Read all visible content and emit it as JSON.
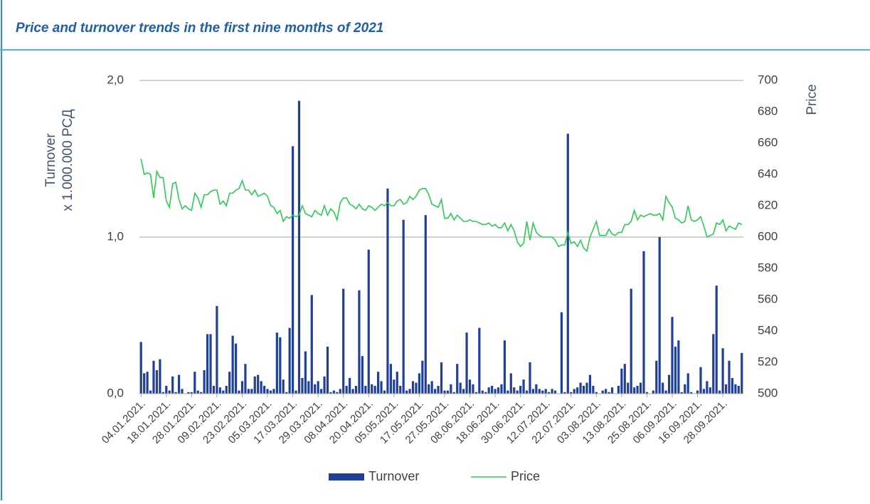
{
  "chart_data": {
    "type": "bar_line",
    "title": "Price and turnover trends in the first nine months of 2021",
    "y_label": [
      "Turnover",
      "x 1.000.000 РСД"
    ],
    "y2_label": "Price",
    "categories": [
      "04.01.2021.",
      null,
      null,
      null,
      null,
      null,
      null,
      null,
      "18.01.2021.",
      null,
      null,
      null,
      null,
      null,
      null,
      null,
      "28.01.2021.",
      null,
      null,
      null,
      null,
      null,
      null,
      null,
      "09.02.2021.",
      null,
      null,
      null,
      null,
      null,
      null,
      null,
      "23.02.2021.",
      null,
      null,
      null,
      null,
      null,
      null,
      null,
      "05.03.2021.",
      null,
      null,
      null,
      null,
      null,
      null,
      null,
      "17.03.2021.",
      null,
      null,
      null,
      null,
      null,
      null,
      null,
      "29.03.2021.",
      null,
      null,
      null,
      null,
      null,
      null,
      null,
      "08.04.2021.",
      null,
      null,
      null,
      null,
      null,
      null,
      null,
      "20.04.2021.",
      null,
      null,
      null,
      null,
      null,
      null,
      null,
      "05.05.2021.",
      null,
      null,
      null,
      null,
      null,
      null,
      null,
      "17.05.2021.",
      null,
      null,
      null,
      null,
      null,
      null,
      null,
      "27.05.2021.",
      null,
      null,
      null,
      null,
      null,
      null,
      null,
      "08.06.2021.",
      null,
      null,
      null,
      null,
      null,
      null,
      null,
      "18.06.2021.",
      null,
      null,
      null,
      null,
      null,
      null,
      null,
      "30.06.2021.",
      null,
      null,
      null,
      null,
      null,
      null,
      null,
      "12.07.2021.",
      null,
      null,
      null,
      null,
      null,
      null,
      null,
      "22.07.2021.",
      null,
      null,
      null,
      null,
      null,
      null,
      null,
      "03.08.2021.",
      null,
      null,
      null,
      null,
      null,
      null,
      null,
      "13.08.2021.",
      null,
      null,
      null,
      null,
      null,
      null,
      null,
      "25.08.2021.",
      null,
      null,
      null,
      null,
      null,
      null,
      null,
      "06.09.2021.",
      null,
      null,
      null,
      null,
      null,
      null,
      null,
      "16.09.2021.",
      null,
      null,
      null,
      null,
      null,
      null,
      null,
      "28.09.2021.",
      null,
      null,
      null,
      null,
      null,
      null
    ],
    "series": [
      {
        "name": "Turnover",
        "type": "bar",
        "color": "#203f9a",
        "values": [
          0.33,
          0.13,
          0.14,
          0.02,
          0.21,
          0.15,
          0.22,
          0.01,
          0.05,
          0.02,
          0.11,
          0.01,
          0.12,
          0.03,
          0.0,
          0.01,
          0.01,
          0.14,
          0.02,
          0.01,
          0.15,
          0.38,
          0.38,
          0.05,
          0.56,
          0.04,
          0.02,
          0.05,
          0.14,
          0.37,
          0.32,
          0.02,
          0.08,
          0.19,
          0.03,
          0.03,
          0.11,
          0.12,
          0.08,
          0.05,
          0.03,
          0.02,
          0.03,
          0.39,
          0.36,
          0.09,
          0.01,
          0.42,
          1.58,
          0.02,
          1.87,
          0.1,
          0.27,
          0.08,
          0.63,
          0.06,
          0.08,
          0.03,
          0.11,
          0.3,
          0.01,
          0.02,
          0.01,
          0.03,
          0.67,
          0.05,
          0.1,
          0.03,
          0.05,
          0.66,
          0.24,
          0.05,
          0.92,
          0.06,
          0.05,
          0.14,
          0.08,
          0.02,
          1.31,
          0.19,
          0.09,
          0.14,
          0.05,
          1.11,
          0.02,
          0.03,
          0.08,
          0.07,
          0.13,
          0.21,
          1.14,
          0.06,
          0.08,
          0.03,
          0.05,
          0.2,
          0.02,
          0.02,
          0.06,
          0.01,
          0.19,
          0.07,
          0.03,
          0.39,
          0.09,
          0.06,
          0.01,
          0.42,
          0.02,
          0.01,
          0.04,
          0.05,
          0.03,
          0.04,
          0.06,
          0.34,
          0.02,
          0.13,
          0.04,
          0.02,
          0.05,
          0.09,
          0.02,
          0.2,
          0.03,
          0.06,
          0.03,
          0.02,
          0.03,
          0.01,
          0.03,
          0.02,
          0.0,
          0.52,
          0.01,
          1.66,
          0.01,
          0.03,
          0.04,
          0.07,
          0.05,
          0.07,
          0.12,
          0.05,
          0.01,
          0.0,
          0.02,
          0.03,
          0.01,
          0.04,
          0.0,
          0.05,
          0.16,
          0.19,
          0.07,
          0.67,
          0.04,
          0.05,
          0.07,
          0.91,
          0.01,
          0.0,
          0.02,
          0.21,
          1.0,
          0.07,
          0.02,
          0.12,
          0.49,
          0.3,
          0.34,
          0.01,
          0.06,
          0.13,
          0.01,
          0.0,
          0.02,
          0.17,
          0.03,
          0.08,
          0.04,
          0.38,
          0.69,
          0.02,
          0.29,
          0.06,
          0.21,
          0.1,
          0.06,
          0.05,
          0.26
        ]
      },
      {
        "name": "Price",
        "type": "line",
        "axis": "y2",
        "color": "#2ecc55",
        "values": [
          650,
          640,
          641,
          640,
          625,
          642,
          638,
          638,
          623,
          619,
          634,
          635,
          624,
          618,
          620,
          618,
          617,
          628,
          625,
          619,
          627,
          627,
          629,
          630,
          630,
          621,
          623,
          620,
          628,
          628,
          630,
          631,
          636,
          630,
          630,
          627,
          630,
          626,
          627,
          628,
          626,
          620,
          619,
          615,
          617,
          610,
          613,
          612,
          614,
          613,
          614,
          620,
          615,
          614,
          613,
          617,
          615,
          614,
          620,
          614,
          618,
          616,
          611,
          622,
          625,
          625,
          621,
          620,
          618,
          621,
          618,
          617,
          620,
          619,
          617,
          619,
          621,
          620,
          622,
          620,
          620,
          623,
          624,
          621,
          622,
          626,
          624,
          626,
          630,
          631,
          631,
          627,
          621,
          620,
          619,
          624,
          612,
          612,
          615,
          611,
          614,
          612,
          610,
          610,
          611,
          610,
          610,
          609,
          608,
          608,
          609,
          607,
          608,
          606,
          606,
          609,
          604,
          608,
          604,
          597,
          594,
          596,
          610,
          598,
          609,
          603,
          601,
          600,
          600,
          600,
          600,
          598,
          594,
          595,
          595,
          603,
          596,
          597,
          594,
          598,
          593,
          591,
          600,
          605,
          610,
          601,
          601,
          601,
          605,
          602,
          601,
          603,
          603,
          608,
          608,
          610,
          617,
          611,
          614,
          613,
          614,
          615,
          614,
          614,
          615,
          611,
          626,
          622,
          619,
          612,
          611,
          609,
          610,
          620,
          611,
          610,
          611,
          613,
          607,
          600,
          601,
          602,
          609,
          608,
          611,
          604,
          607,
          606,
          605,
          609,
          608
        ]
      }
    ],
    "ylim": [
      0,
      2
    ],
    "yticks": [
      {
        "value": 0,
        "label": "0,0"
      },
      {
        "value": 1,
        "label": "1,0"
      },
      {
        "value": 2,
        "label": "2,0"
      }
    ],
    "y2lim": [
      500,
      700
    ],
    "y2ticks": [
      500,
      520,
      540,
      560,
      580,
      600,
      620,
      640,
      660,
      680,
      700
    ],
    "grid": true,
    "legend": "bottom"
  }
}
